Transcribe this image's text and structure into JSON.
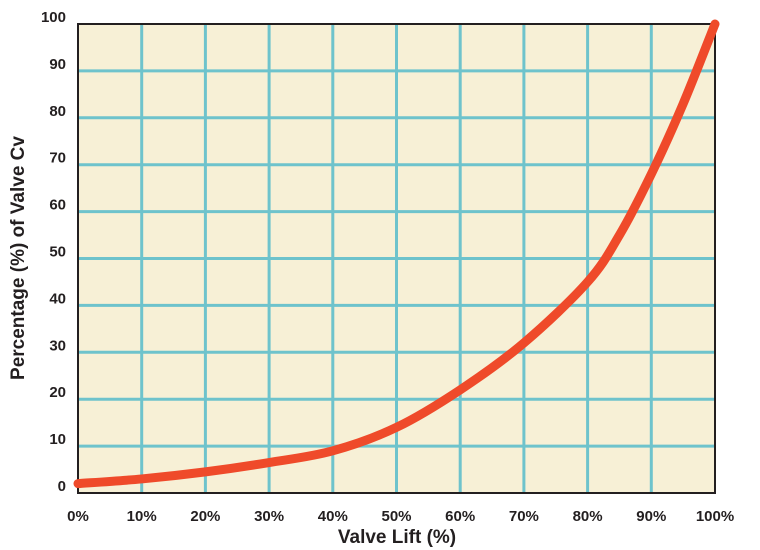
{
  "chart_data": {
    "type": "line",
    "title": "",
    "xlabel": "Valve  Lift (%)",
    "ylabel": "Percentage (%) of Valve Cv",
    "x_ticks": [
      "0%",
      "10%",
      "20%",
      "30%",
      "40%",
      "50%",
      "60%",
      "70%",
      "80%",
      "90%",
      "100%"
    ],
    "y_ticks": [
      "0",
      "10",
      "20",
      "30",
      "40",
      "50",
      "60",
      "70",
      "80",
      "90",
      "100"
    ],
    "xlim": [
      0,
      100
    ],
    "ylim": [
      0,
      100
    ],
    "grid": true,
    "colors": {
      "plot_background": "#f7f0d6",
      "grid": "#6ec3cc",
      "frame": "#231f20",
      "line": "#ef4a2a"
    },
    "series": [
      {
        "x": [
          0,
          10,
          20,
          30,
          40,
          50,
          60,
          70,
          80,
          85,
          90,
          95,
          100
        ],
        "y": [
          2,
          3,
          4.5,
          6.5,
          9,
          14,
          22,
          32,
          45,
          55,
          68,
          83,
          100
        ]
      }
    ]
  }
}
